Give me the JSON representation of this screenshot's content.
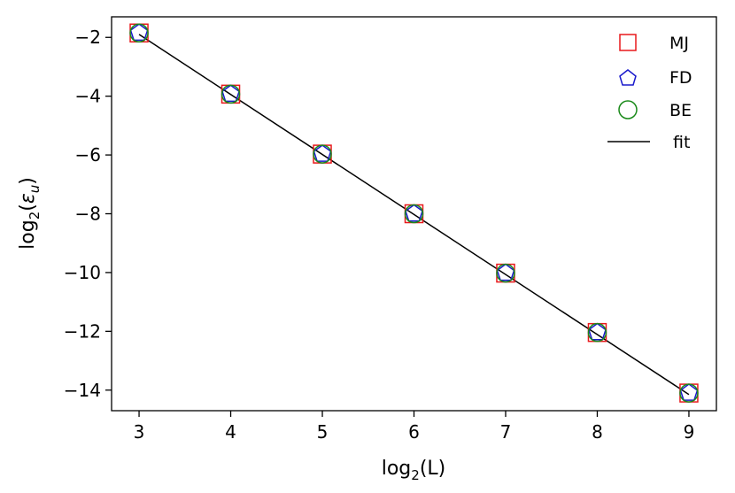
{
  "chart_data": {
    "type": "scatter",
    "xlabel": {
      "base": "log",
      "sub": "2",
      "arg": "(L)"
    },
    "ylabel": {
      "base": "log",
      "sub": "2",
      "arg_open": "(",
      "arg_symbol": "ε",
      "arg_sub": "u",
      "arg_close": ")"
    },
    "xlim": [
      2.7,
      9.3
    ],
    "ylim": [
      -14.7,
      -1.3
    ],
    "xticks": [
      3,
      4,
      5,
      6,
      7,
      8,
      9
    ],
    "xtick_labels": [
      "3",
      "4",
      "5",
      "6",
      "7",
      "8",
      "9"
    ],
    "yticks": [
      -2,
      -4,
      -6,
      -8,
      -10,
      -12,
      -14
    ],
    "ytick_labels": [
      "−2",
      "−4",
      "−6",
      "−8",
      "−10",
      "−12",
      "−14"
    ],
    "grid": false,
    "legend_position": "top-right",
    "series": [
      {
        "name": "MJ",
        "marker": "square",
        "color": "#e8191c",
        "x": [
          3,
          4,
          5,
          6,
          7,
          8,
          9
        ],
        "y": [
          -1.85,
          -3.93,
          -5.97,
          -8.0,
          -10.02,
          -12.04,
          -14.1
        ]
      },
      {
        "name": "FD",
        "marker": "pentagon",
        "color": "#1a1acc",
        "x": [
          3,
          4,
          5,
          6,
          7,
          8,
          9
        ],
        "y": [
          -1.85,
          -3.93,
          -5.97,
          -8.0,
          -10.02,
          -12.04,
          -14.1
        ]
      },
      {
        "name": "BE",
        "marker": "circle",
        "color": "#1a8a1a",
        "x": [
          3,
          4,
          5,
          6,
          7,
          8,
          9
        ],
        "y": [
          -1.85,
          -3.93,
          -5.97,
          -8.0,
          -10.02,
          -12.04,
          -14.1
        ]
      }
    ],
    "fit": {
      "name": "fit",
      "color": "#000000",
      "x": [
        3,
        9
      ],
      "y": [
        -1.9,
        -14.15
      ]
    }
  }
}
